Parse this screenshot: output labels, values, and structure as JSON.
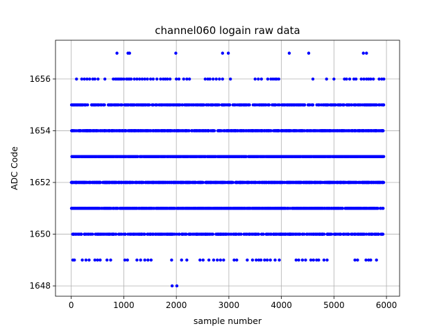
{
  "chart_data": {
    "type": "scatter",
    "title": "channel060 logain raw data",
    "xlabel": "sample number",
    "ylabel": "ADC Code",
    "xlim": [
      -300,
      6250
    ],
    "ylim": [
      1647.6,
      1657.5
    ],
    "xticks": [
      0,
      1000,
      2000,
      3000,
      4000,
      5000,
      6000
    ],
    "yticks": [
      1648,
      1650,
      1652,
      1654,
      1656
    ],
    "grid": true,
    "marker_color": "#0000ff",
    "n_samples": 5950,
    "dense_levels": [
      {
        "level": 1650,
        "count": 480
      },
      {
        "level": 1651,
        "count": 760
      },
      {
        "level": 1652,
        "count": 1000
      },
      {
        "level": 1653,
        "count": 1000
      },
      {
        "level": 1654,
        "count": 760
      },
      {
        "level": 1655,
        "count": 430
      }
    ],
    "sparse_points": [
      {
        "y": 1657,
        "x": [
          870,
          1080,
          1110,
          1990,
          2880,
          2990,
          4150,
          4520,
          5560,
          5620
        ]
      },
      {
        "y": 1656,
        "x": [
          100,
          200,
          250,
          300,
          350,
          410,
          450,
          510,
          640,
          800,
          840,
          870,
          900,
          930,
          960,
          1000,
          1050,
          1080,
          1110,
          1140,
          1200,
          1250,
          1300,
          1350,
          1400,
          1450,
          1510,
          1560,
          1630,
          1700,
          1750,
          1790,
          1830,
          1880,
          2000,
          2050,
          2140,
          2200,
          2250,
          2550,
          2600,
          2640,
          2700,
          2760,
          2820,
          2880,
          3030,
          3500,
          3560,
          3620,
          3740,
          3800,
          3840,
          3880,
          3910,
          3950,
          4600,
          4860,
          5000,
          5200,
          5240,
          5300,
          5380,
          5420,
          5520,
          5570,
          5620,
          5660,
          5700,
          5750,
          5860,
          5910,
          5950
        ]
      },
      {
        "y": 1649,
        "x": [
          30,
          60,
          210,
          280,
          340,
          450,
          500,
          550,
          680,
          750,
          1020,
          1070,
          1250,
          1320,
          1400,
          1460,
          1520,
          1910,
          2100,
          2200,
          2450,
          2510,
          2620,
          2710,
          2780,
          2840,
          2900,
          3100,
          3150,
          3350,
          3450,
          3520,
          3570,
          3610,
          3680,
          3730,
          3790,
          3880,
          3960,
          4280,
          4330,
          4400,
          4460,
          4560,
          4610,
          4670,
          4710,
          4810,
          4870,
          5400,
          5450,
          5610,
          5660,
          5700,
          5810
        ]
      },
      {
        "y": 1648,
        "x": [
          1920,
          2010
        ]
      }
    ]
  }
}
